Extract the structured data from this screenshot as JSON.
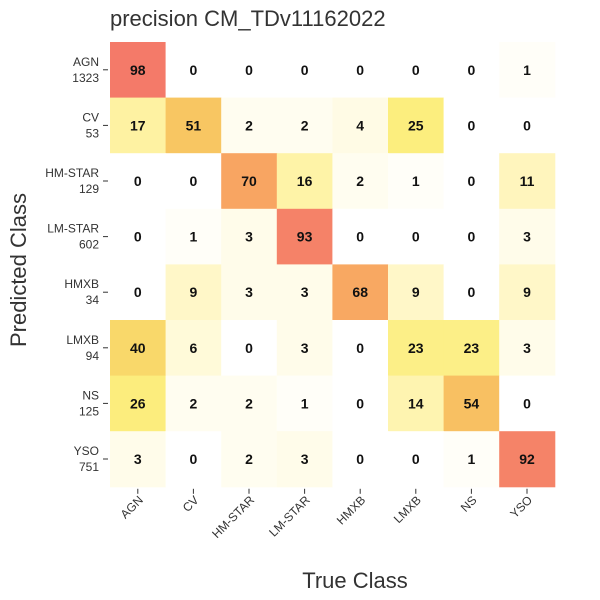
{
  "chart_data": {
    "type": "heatmap",
    "title": "precision CM_TDv11162022",
    "xlabel": "True Class",
    "ylabel": "Predicted Class",
    "x_categories": [
      "AGN",
      "CV",
      "HM-STAR",
      "LM-STAR",
      "HMXB",
      "LMXB",
      "NS",
      "YSO"
    ],
    "y_categories": [
      "AGN",
      "CV",
      "HM-STAR",
      "LM-STAR",
      "HMXB",
      "LMXB",
      "NS",
      "YSO"
    ],
    "y_counts": [
      "1323",
      "53",
      "129",
      "602",
      "34",
      "94",
      "125",
      "751"
    ],
    "values": [
      [
        98,
        0,
        0,
        0,
        0,
        0,
        0,
        1
      ],
      [
        17,
        51,
        2,
        2,
        4,
        25,
        0,
        0
      ],
      [
        0,
        0,
        70,
        16,
        2,
        1,
        0,
        11
      ],
      [
        0,
        1,
        3,
        93,
        0,
        0,
        0,
        3
      ],
      [
        0,
        9,
        3,
        3,
        68,
        9,
        0,
        9
      ],
      [
        40,
        6,
        0,
        3,
        0,
        23,
        23,
        3
      ],
      [
        26,
        2,
        2,
        1,
        0,
        14,
        54,
        0
      ],
      [
        3,
        0,
        2,
        3,
        0,
        0,
        1,
        92
      ]
    ],
    "value_range": [
      0,
      100
    ],
    "colormap": "YlOrRd",
    "colors": {
      "low": "#ffffff",
      "high": "#f4776a"
    }
  }
}
